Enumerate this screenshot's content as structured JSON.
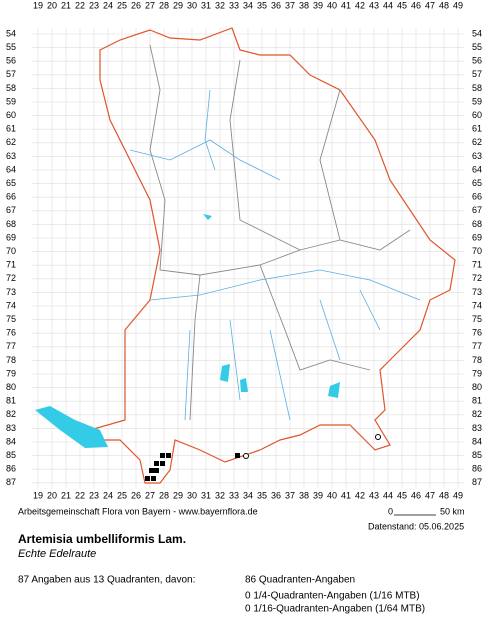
{
  "columns": [
    19,
    20,
    21,
    22,
    23,
    24,
    25,
    26,
    27,
    28,
    29,
    30,
    31,
    32,
    33,
    34,
    35,
    36,
    37,
    38,
    39,
    40,
    41,
    42,
    43,
    44,
    45,
    46,
    47,
    48,
    49
  ],
  "rows": [
    54,
    55,
    56,
    57,
    58,
    59,
    60,
    61,
    62,
    63,
    64,
    65,
    66,
    67,
    68,
    69,
    70,
    71,
    72,
    73,
    74,
    75,
    76,
    77,
    78,
    79,
    80,
    81,
    82,
    83,
    84,
    85,
    86,
    87
  ],
  "footer": {
    "credit": "Arbeitsgemeinschaft Flora von Bayern - www.bayernflora.de",
    "scale_start": "0",
    "scale_end": "50 km",
    "date": "Datenstand: 05.06.2025"
  },
  "species": {
    "name": "Artemisia umbelliformis Lam.",
    "common_name": "Echte Edelraute"
  },
  "summary": {
    "total": "87 Angaben aus 13 Quadranten, davon:",
    "quadrant": "86 Quadranten-Angaben",
    "quarter": "0 1/4-Quadranten-Angaben (1/16 MTB)",
    "sixteenth": "0 1/16-Quadranten-Angaben (1/64 MTB)"
  }
}
